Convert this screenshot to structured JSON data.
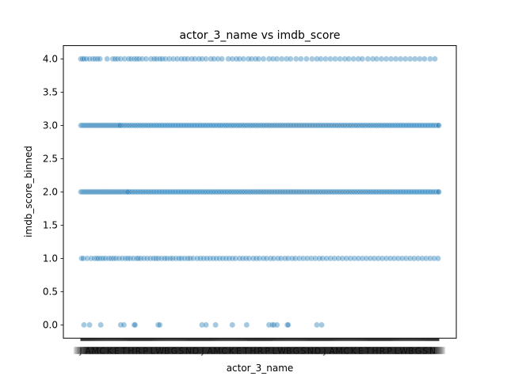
{
  "chart_data": {
    "type": "scatter",
    "title": "actor_3_name vs imdb_score",
    "xlabel": "actor_3_name",
    "ylabel": "imdb_score_binned",
    "ylim": [
      -0.2,
      4.2
    ],
    "yticks": [
      "0.0",
      "0.5",
      "1.0",
      "1.5",
      "2.0",
      "2.5",
      "3.0",
      "3.5",
      "4.0"
    ],
    "ytick_values": [
      0.0,
      0.5,
      1.0,
      1.5,
      2.0,
      2.5,
      3.0,
      3.5,
      4.0
    ],
    "x_is_categorical": true,
    "x_category_count_estimate": 450,
    "grid": false,
    "marker_color": "#1f77b4",
    "marker_alpha": 0.4,
    "series": [
      {
        "y": 4.0,
        "x_category_indices": [
          0,
          2,
          4,
          7,
          11,
          15,
          18,
          21,
          24,
          33,
          40,
          43,
          46,
          50,
          55,
          60,
          63,
          67,
          70,
          73,
          77,
          82,
          88,
          92,
          95,
          99,
          102,
          106,
          111,
          116,
          121,
          126,
          130,
          134,
          139,
          143,
          148,
          152,
          157,
          163,
          167,
          172,
          177,
          185,
          190,
          195,
          199,
          204,
          210,
          214,
          219,
          223,
          229,
          236,
          241,
          246,
          252,
          258,
          263,
          270,
          276,
          283,
          290,
          296,
          301,
          307,
          313,
          319,
          325,
          331,
          336,
          342,
          348,
          353,
          360,
          366,
          371,
          377,
          383,
          389,
          395,
          401,
          407,
          413,
          419,
          425,
          431,
          438,
          444
        ]
      },
      {
        "y": 3.0,
        "x_category_indices": [
          0,
          1,
          2,
          3,
          4,
          5,
          6,
          7,
          8,
          9,
          10,
          11,
          12,
          13,
          14,
          15,
          16,
          17,
          18,
          19,
          20,
          21,
          22,
          23,
          24,
          25,
          26,
          27,
          28,
          29,
          30,
          31,
          32,
          33,
          34,
          35,
          36,
          37,
          38,
          39,
          40,
          41,
          42,
          43,
          44,
          45,
          46,
          47,
          48,
          49,
          50,
          52,
          54,
          56,
          58,
          60,
          62,
          64,
          66,
          68,
          70,
          72,
          74,
          76,
          78,
          80,
          82,
          84,
          86,
          88,
          90,
          92,
          94,
          96,
          98,
          100,
          102,
          104,
          106,
          108,
          110,
          112,
          114,
          116,
          118,
          120,
          122,
          124,
          126,
          128,
          130,
          132,
          134,
          136,
          138,
          140,
          142,
          144,
          146,
          148,
          150,
          152,
          154,
          156,
          158,
          160,
          162,
          164,
          166,
          168,
          170,
          172,
          174,
          176,
          178,
          180,
          182,
          184,
          186,
          188,
          190,
          192,
          194,
          196,
          198,
          200,
          202,
          204,
          206,
          208,
          210,
          212,
          214,
          216,
          218,
          220,
          222,
          224,
          226,
          228,
          230,
          232,
          234,
          236,
          238,
          240,
          242,
          244,
          246,
          248,
          250,
          252,
          254,
          256,
          258,
          260,
          262,
          264,
          266,
          268,
          270,
          272,
          274,
          276,
          278,
          280,
          282,
          284,
          286,
          288,
          290,
          292,
          294,
          296,
          298,
          300,
          302,
          304,
          306,
          308,
          310,
          312,
          314,
          316,
          318,
          320,
          322,
          324,
          326,
          328,
          330,
          332,
          334,
          336,
          338,
          340,
          342,
          344,
          346,
          348,
          350,
          352,
          354,
          356,
          358,
          360,
          362,
          364,
          366,
          368,
          370,
          372,
          374,
          376,
          378,
          380,
          382,
          384,
          386,
          388,
          390,
          392,
          394,
          396,
          398,
          400,
          402,
          404,
          406,
          408,
          410,
          412,
          414,
          416,
          418,
          420,
          422,
          424,
          426,
          428,
          430,
          432,
          434,
          436,
          438,
          440,
          442,
          444,
          446,
          448,
          449
        ]
      },
      {
        "y": 2.0,
        "x_category_indices": [
          0,
          1,
          2,
          3,
          4,
          5,
          6,
          7,
          8,
          9,
          10,
          11,
          12,
          13,
          14,
          15,
          16,
          17,
          18,
          19,
          20,
          21,
          22,
          23,
          24,
          25,
          26,
          27,
          28,
          29,
          30,
          31,
          32,
          33,
          34,
          35,
          36,
          37,
          38,
          39,
          40,
          41,
          42,
          43,
          44,
          45,
          46,
          47,
          48,
          49,
          50,
          51,
          52,
          53,
          54,
          55,
          56,
          57,
          58,
          59,
          60,
          62,
          64,
          66,
          68,
          70,
          72,
          74,
          76,
          78,
          80,
          82,
          84,
          86,
          88,
          90,
          92,
          94,
          96,
          98,
          100,
          102,
          104,
          106,
          108,
          110,
          112,
          114,
          116,
          118,
          120,
          122,
          124,
          126,
          128,
          130,
          132,
          134,
          136,
          138,
          140,
          142,
          144,
          146,
          148,
          150,
          152,
          154,
          156,
          158,
          160,
          162,
          164,
          166,
          168,
          170,
          172,
          174,
          176,
          178,
          180,
          182,
          184,
          186,
          188,
          190,
          192,
          194,
          196,
          198,
          200,
          202,
          204,
          206,
          208,
          210,
          212,
          214,
          216,
          218,
          220,
          222,
          224,
          226,
          228,
          230,
          232,
          234,
          236,
          238,
          240,
          242,
          244,
          246,
          248,
          250,
          252,
          254,
          256,
          258,
          260,
          262,
          264,
          266,
          268,
          270,
          272,
          274,
          276,
          278,
          280,
          282,
          284,
          286,
          288,
          290,
          292,
          294,
          296,
          298,
          300,
          302,
          304,
          306,
          308,
          310,
          312,
          314,
          316,
          318,
          320,
          322,
          324,
          326,
          328,
          330,
          332,
          334,
          336,
          338,
          340,
          342,
          344,
          346,
          348,
          350,
          352,
          354,
          356,
          358,
          360,
          362,
          364,
          366,
          368,
          370,
          372,
          374,
          376,
          378,
          380,
          382,
          384,
          386,
          388,
          390,
          392,
          394,
          396,
          398,
          400,
          402,
          404,
          406,
          408,
          410,
          412,
          414,
          416,
          418,
          420,
          422,
          424,
          426,
          428,
          430,
          432,
          434,
          436,
          438,
          440,
          442,
          444,
          446,
          448,
          449
        ]
      },
      {
        "y": 1.0,
        "x_category_indices": [
          1,
          3,
          8,
          13,
          17,
          20,
          22,
          25,
          28,
          31,
          35,
          38,
          41,
          44,
          48,
          52,
          56,
          59,
          62,
          66,
          70,
          72,
          75,
          79,
          83,
          87,
          91,
          94,
          97,
          101,
          105,
          108,
          112,
          115,
          119,
          123,
          126,
          130,
          134,
          137,
          141,
          146,
          150,
          154,
          158,
          162,
          166,
          170,
          174,
          178,
          182,
          186,
          190,
          194,
          199,
          203,
          207,
          211,
          216,
          220,
          224,
          229,
          233,
          238,
          242,
          247,
          251,
          256,
          260,
          265,
          269,
          274,
          279,
          284,
          289,
          294,
          299,
          303,
          308,
          313,
          318,
          323,
          328,
          333,
          338,
          343,
          348,
          353,
          358,
          363,
          368,
          373,
          378,
          383,
          388,
          393,
          398,
          403,
          408,
          413,
          418,
          423,
          428,
          433,
          438,
          443,
          448
        ]
      },
      {
        "y": 0.0,
        "x_category_indices": [
          4,
          11,
          25,
          50,
          54,
          67,
          68,
          97,
          99,
          152,
          157,
          169,
          190,
          208,
          236,
          240,
          242,
          246,
          259,
          260,
          296,
          302
        ]
      }
    ]
  }
}
